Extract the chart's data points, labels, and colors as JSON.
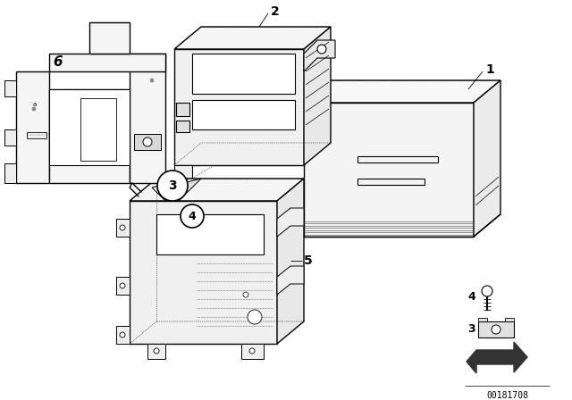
{
  "background_color": "#ffffff",
  "line_color": "#000000",
  "diagram_id": "00181708",
  "figsize": [
    6.4,
    4.48
  ],
  "dpi": 100,
  "lw_main": 1.0,
  "lw_thin": 0.5,
  "lw_dot": 0.6
}
